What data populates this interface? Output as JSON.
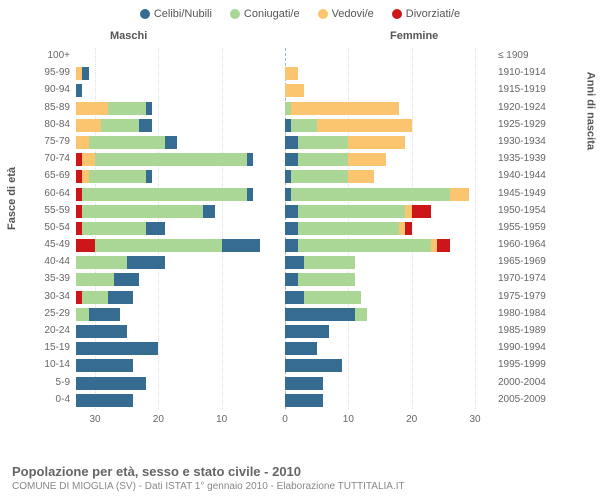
{
  "legend": [
    {
      "label": "Celibi/Nubili",
      "color": "#366c91"
    },
    {
      "label": "Coniugati/e",
      "color": "#aad696"
    },
    {
      "label": "Vedovi/e",
      "color": "#fac56e"
    },
    {
      "label": "Divorziati/e",
      "color": "#cd1619"
    }
  ],
  "gender_labels": {
    "male": "Maschi",
    "female": "Femmine"
  },
  "axis_titles": {
    "left": "Fasce di età",
    "right": "Anni di nascita"
  },
  "x_axis": {
    "max": 33,
    "ticks": [
      0,
      10,
      20,
      30
    ]
  },
  "rows": [
    {
      "age": "100+",
      "birth": "≤ 1909",
      "m": [
        0,
        0,
        0,
        0
      ],
      "f": [
        0,
        0,
        0,
        0
      ]
    },
    {
      "age": "95-99",
      "birth": "1910-1914",
      "m": [
        1,
        0,
        1,
        0
      ],
      "f": [
        0,
        0,
        2,
        0
      ]
    },
    {
      "age": "90-94",
      "birth": "1915-1919",
      "m": [
        1,
        0,
        0,
        0
      ],
      "f": [
        0,
        0,
        3,
        0
      ]
    },
    {
      "age": "85-89",
      "birth": "1920-1924",
      "m": [
        1,
        6,
        5,
        0
      ],
      "f": [
        0,
        1,
        17,
        0
      ]
    },
    {
      "age": "80-84",
      "birth": "1925-1929",
      "m": [
        2,
        6,
        4,
        0
      ],
      "f": [
        1,
        4,
        15,
        0
      ]
    },
    {
      "age": "75-79",
      "birth": "1930-1934",
      "m": [
        2,
        12,
        2,
        0
      ],
      "f": [
        2,
        8,
        9,
        0
      ]
    },
    {
      "age": "70-74",
      "birth": "1935-1939",
      "m": [
        1,
        24,
        2,
        1
      ],
      "f": [
        2,
        8,
        6,
        0
      ]
    },
    {
      "age": "65-69",
      "birth": "1940-1944",
      "m": [
        1,
        9,
        1,
        1
      ],
      "f": [
        1,
        9,
        4,
        0
      ]
    },
    {
      "age": "60-64",
      "birth": "1945-1949",
      "m": [
        1,
        26,
        0,
        1
      ],
      "f": [
        1,
        25,
        3,
        0
      ]
    },
    {
      "age": "55-59",
      "birth": "1950-1954",
      "m": [
        2,
        19,
        0,
        1
      ],
      "f": [
        2,
        17,
        1,
        3
      ]
    },
    {
      "age": "50-54",
      "birth": "1955-1959",
      "m": [
        3,
        10,
        0,
        1
      ],
      "f": [
        2,
        16,
        1,
        1
      ]
    },
    {
      "age": "45-49",
      "birth": "1960-1964",
      "m": [
        6,
        20,
        0,
        3
      ],
      "f": [
        2,
        21,
        1,
        2
      ]
    },
    {
      "age": "40-44",
      "birth": "1965-1969",
      "m": [
        6,
        8,
        0,
        0
      ],
      "f": [
        3,
        8,
        0,
        0
      ]
    },
    {
      "age": "35-39",
      "birth": "1970-1974",
      "m": [
        4,
        6,
        0,
        0
      ],
      "f": [
        2,
        9,
        0,
        0
      ]
    },
    {
      "age": "30-34",
      "birth": "1975-1979",
      "m": [
        4,
        4,
        0,
        1
      ],
      "f": [
        3,
        9,
        0,
        0
      ]
    },
    {
      "age": "25-29",
      "birth": "1980-1984",
      "m": [
        5,
        2,
        0,
        0
      ],
      "f": [
        11,
        2,
        0,
        0
      ]
    },
    {
      "age": "20-24",
      "birth": "1985-1989",
      "m": [
        8,
        0,
        0,
        0
      ],
      "f": [
        7,
        0,
        0,
        0
      ]
    },
    {
      "age": "15-19",
      "birth": "1990-1994",
      "m": [
        13,
        0,
        0,
        0
      ],
      "f": [
        5,
        0,
        0,
        0
      ]
    },
    {
      "age": "10-14",
      "birth": "1995-1999",
      "m": [
        9,
        0,
        0,
        0
      ],
      "f": [
        9,
        0,
        0,
        0
      ]
    },
    {
      "age": "5-9",
      "birth": "2000-2004",
      "m": [
        11,
        0,
        0,
        0
      ],
      "f": [
        6,
        0,
        0,
        0
      ]
    },
    {
      "age": "0-4",
      "birth": "2005-2009",
      "m": [
        9,
        0,
        0,
        0
      ],
      "f": [
        6,
        0,
        0,
        0
      ]
    }
  ],
  "footer": {
    "title": "Popolazione per età, sesso e stato civile - 2010",
    "sub": "COMUNE DI MIOGLIA (SV) - Dati ISTAT 1° gennaio 2010 - Elaborazione TUTTITALIA.IT"
  },
  "colors": {
    "grid": "#dddddd",
    "center": "#93b7d4",
    "text": "#666666",
    "bg": "#ffffff"
  }
}
